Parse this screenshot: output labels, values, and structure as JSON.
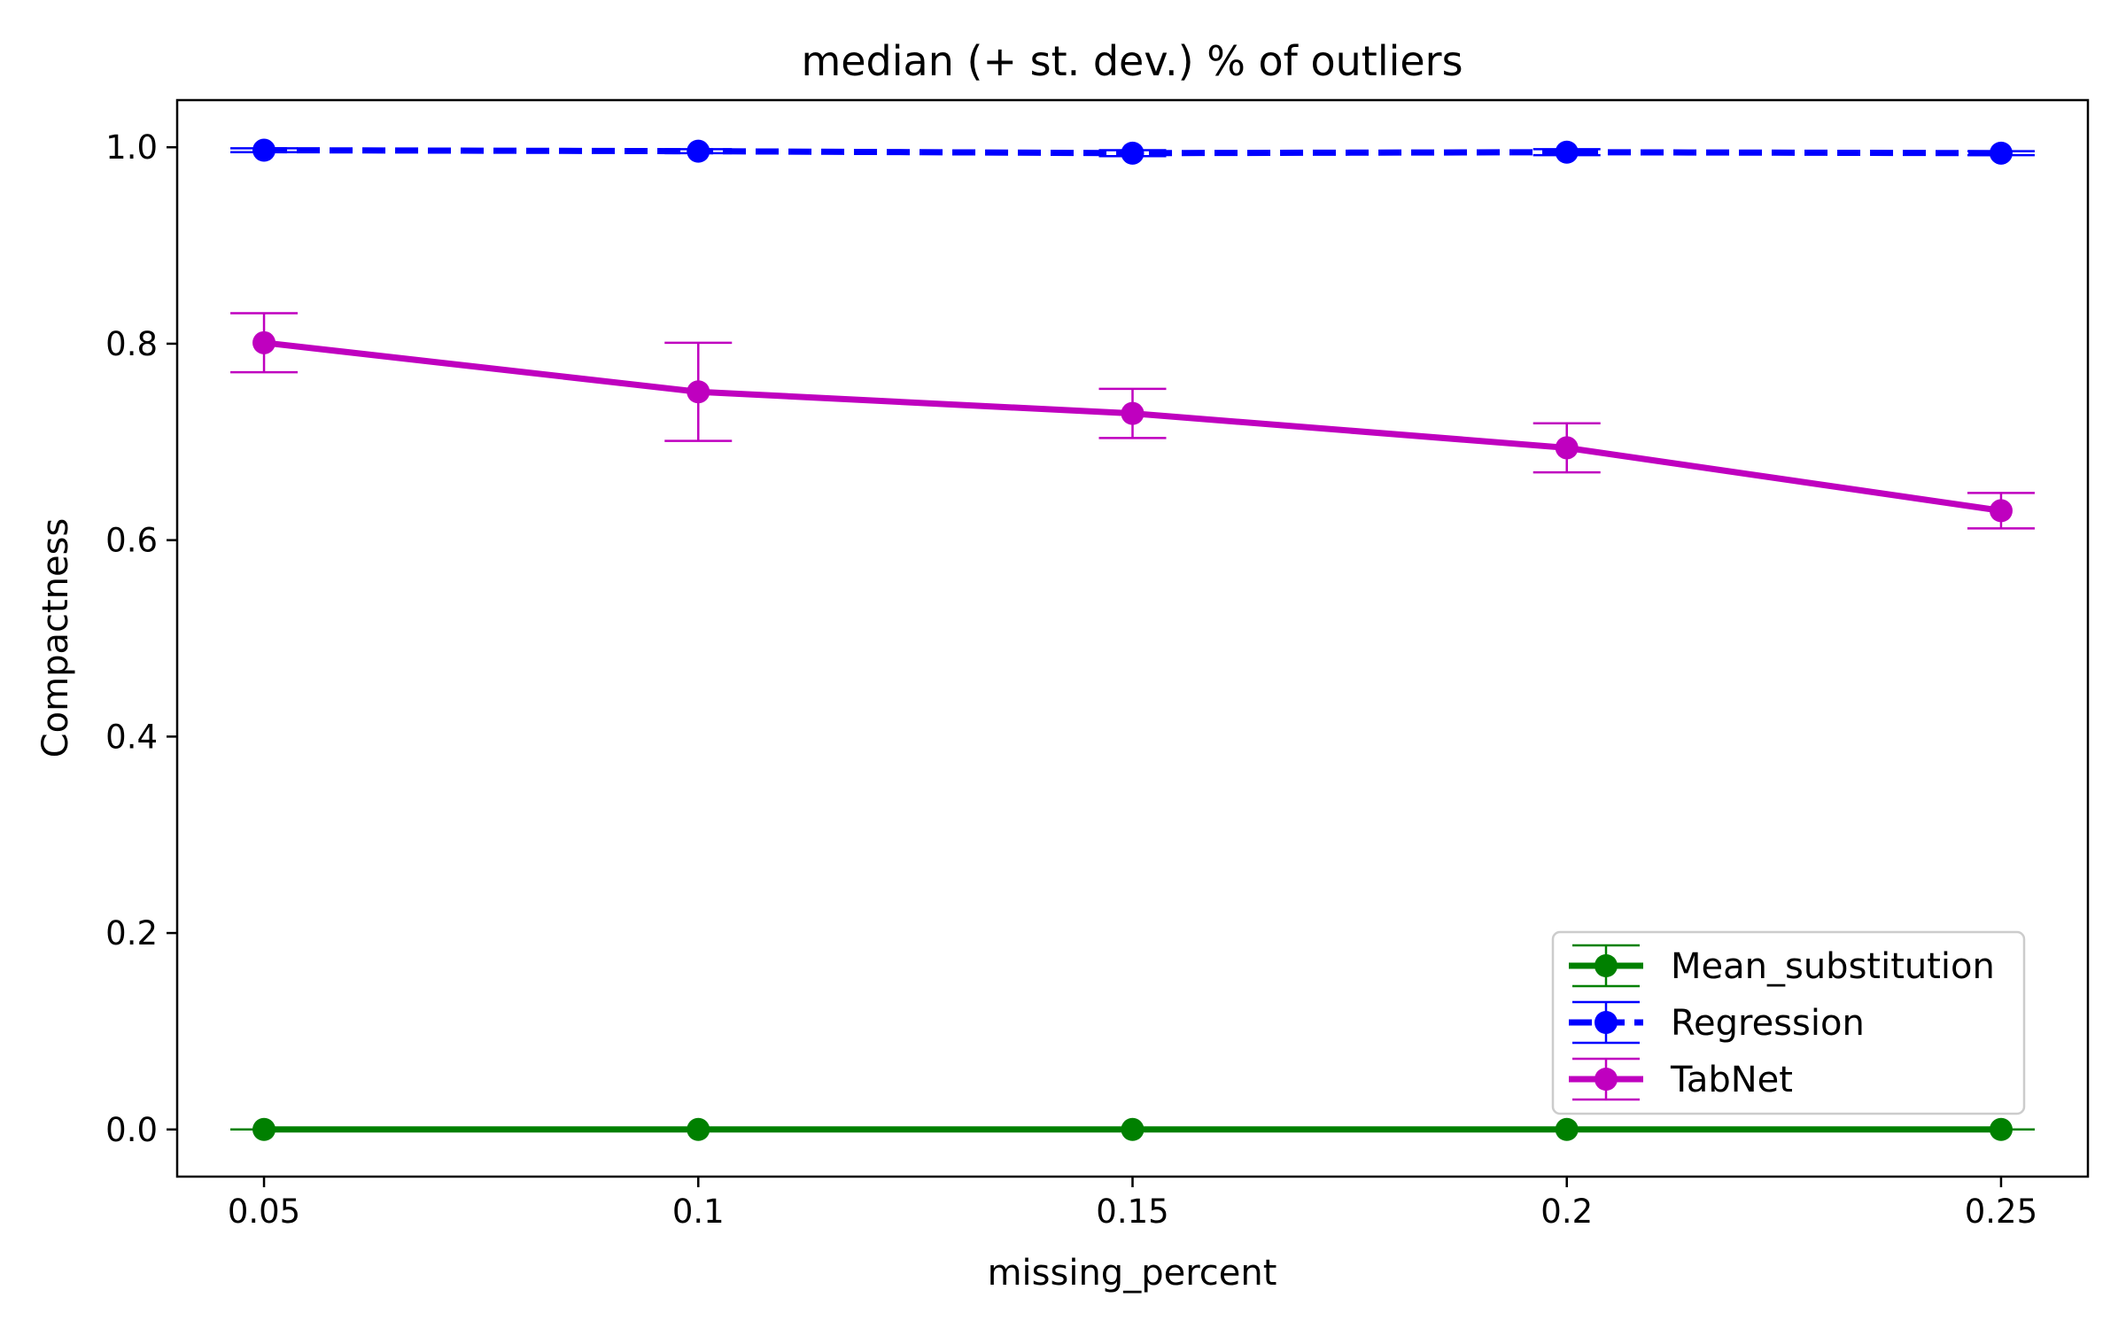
{
  "chart_data": {
    "type": "line",
    "title": "median (+ st. dev.) % of outliers",
    "xlabel": "missing_percent",
    "ylabel": "Compactness",
    "x": [
      0.05,
      0.1,
      0.15,
      0.2,
      0.25
    ],
    "x_tick_labels": [
      "0.05",
      "0.1",
      "0.15",
      "0.2",
      "0.25"
    ],
    "y_ticks": [
      0.0,
      0.2,
      0.4,
      0.6,
      0.8,
      1.0
    ],
    "y_tick_labels": [
      "0.0",
      "0.2",
      "0.4",
      "0.6",
      "0.8",
      "1.0"
    ],
    "xlim": [
      0.04,
      0.26
    ],
    "ylim": [
      -0.048,
      1.048
    ],
    "grid": false,
    "legend_position": "lower-right",
    "series": [
      {
        "name": "Mean_substitution",
        "color": "#008000",
        "line_style": "solid",
        "values": [
          0.0,
          0.0,
          0.0,
          0.0,
          0.0
        ],
        "errors": [
          0.0,
          0.0,
          0.0,
          0.0,
          0.0
        ]
      },
      {
        "name": "Regression",
        "color": "#0000ff",
        "line_style": "dashed",
        "values": [
          0.997,
          0.996,
          0.994,
          0.995,
          0.994
        ],
        "errors": [
          0.002,
          0.002,
          0.003,
          0.003,
          0.002
        ]
      },
      {
        "name": "TabNet",
        "color": "#bf00bf",
        "line_style": "solid",
        "values": [
          0.801,
          0.751,
          0.729,
          0.694,
          0.63
        ],
        "errors": [
          0.03,
          0.05,
          0.025,
          0.025,
          0.018
        ]
      }
    ]
  }
}
